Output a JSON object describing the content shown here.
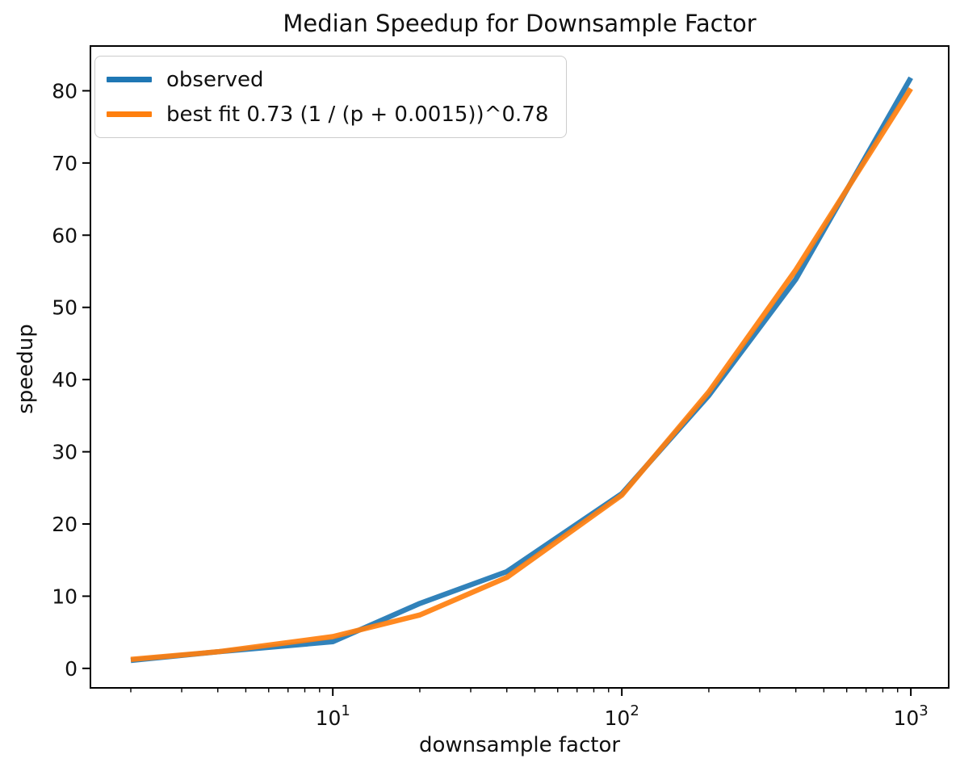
{
  "title": "Median Speedup for Downsample Factor",
  "chart_data": {
    "type": "line",
    "x_scale": "log",
    "x": [
      2,
      4,
      10,
      20,
      40,
      100,
      200,
      400,
      1000
    ],
    "series": [
      {
        "name": "observed",
        "color": "#1f77b4",
        "values": [
          1.1,
          2.3,
          3.7,
          9.0,
          13.4,
          24.2,
          37.8,
          53.9,
          81.8
        ]
      },
      {
        "name": "best fit 0.73 (1 / (p + 0.0015))^0.78",
        "color": "#ff7f0e",
        "values": [
          1.25,
          2.3,
          4.4,
          7.4,
          12.6,
          24.0,
          38.3,
          55.2,
          80.3
        ]
      }
    ],
    "title": "Median Speedup for Downsample Factor",
    "xlabel": "downsample factor",
    "ylabel": "speedup",
    "xlim": [
      1.45,
      1352
    ],
    "ylim": [
      -2.7,
      86.2
    ],
    "x_major_ticks": [
      {
        "mantissa": "10",
        "exponent": "1",
        "value": 10
      },
      {
        "mantissa": "10",
        "exponent": "2",
        "value": 100
      },
      {
        "mantissa": "10",
        "exponent": "3",
        "value": 1000
      }
    ],
    "y_ticks": [
      0,
      10,
      20,
      30,
      40,
      50,
      60,
      70,
      80
    ],
    "grid": false,
    "legend_position": "upper left",
    "axis_color": "#000000",
    "text_color": "#111111"
  }
}
